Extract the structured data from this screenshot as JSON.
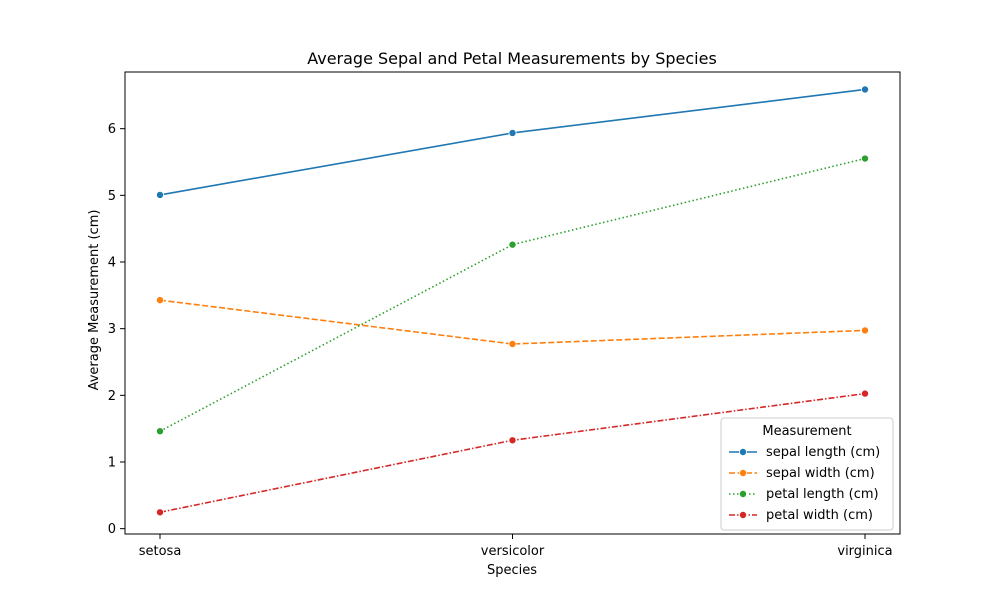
{
  "chart_data": {
    "type": "line",
    "title": "Average Sepal and Petal Measurements by Species",
    "xlabel": "Species",
    "ylabel": "Average Measurement (cm)",
    "categories": [
      "setosa",
      "versicolor",
      "virginica"
    ],
    "ylim": [
      -0.08,
      6.85
    ],
    "yticks": [
      0,
      1,
      2,
      3,
      4,
      5,
      6
    ],
    "grid": false,
    "legend": {
      "title": "Measurement",
      "position": "lower-right"
    },
    "series": [
      {
        "name": "sepal length (cm)",
        "values": [
          5.006,
          5.936,
          6.588
        ],
        "color": "#1f77b4",
        "style": "solid"
      },
      {
        "name": "sepal width (cm)",
        "values": [
          3.428,
          2.77,
          2.974
        ],
        "color": "#ff7f0e",
        "style": "dashed"
      },
      {
        "name": "petal length (cm)",
        "values": [
          1.462,
          4.26,
          5.552
        ],
        "color": "#2ca02c",
        "style": "dotted"
      },
      {
        "name": "petal width (cm)",
        "values": [
          0.246,
          1.326,
          2.026
        ],
        "color": "#d62728",
        "style": "dashdot"
      }
    ]
  }
}
